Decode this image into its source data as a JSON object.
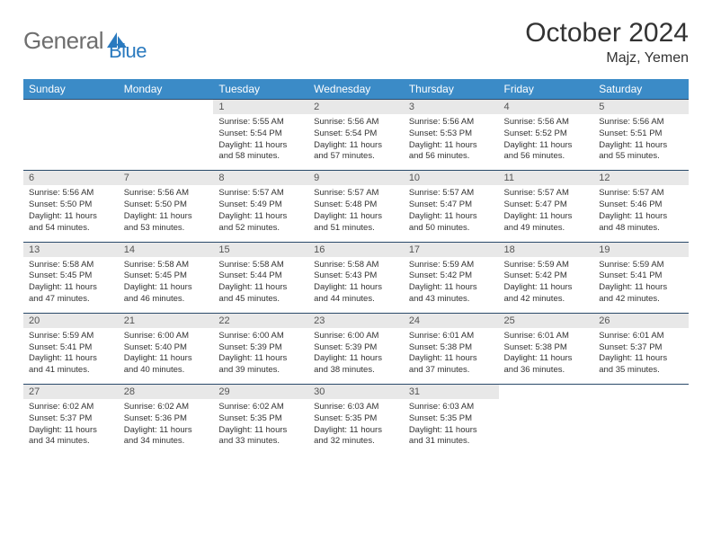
{
  "logo": {
    "text1": "General",
    "text2": "Blue",
    "icon_color": "#2a7abf"
  },
  "title": "October 2024",
  "subtitle": "Majz, Yemen",
  "header_bg": "#3b8bc7",
  "header_fg": "#ffffff",
  "daynum_bg": "#e8e8e8",
  "border_color": "#2a4a6a",
  "weekdays": [
    "Sunday",
    "Monday",
    "Tuesday",
    "Wednesday",
    "Thursday",
    "Friday",
    "Saturday"
  ],
  "weeks": [
    [
      {
        "day": "",
        "lines": []
      },
      {
        "day": "",
        "lines": []
      },
      {
        "day": "1",
        "lines": [
          "Sunrise: 5:55 AM",
          "Sunset: 5:54 PM",
          "Daylight: 11 hours",
          "and 58 minutes."
        ]
      },
      {
        "day": "2",
        "lines": [
          "Sunrise: 5:56 AM",
          "Sunset: 5:54 PM",
          "Daylight: 11 hours",
          "and 57 minutes."
        ]
      },
      {
        "day": "3",
        "lines": [
          "Sunrise: 5:56 AM",
          "Sunset: 5:53 PM",
          "Daylight: 11 hours",
          "and 56 minutes."
        ]
      },
      {
        "day": "4",
        "lines": [
          "Sunrise: 5:56 AM",
          "Sunset: 5:52 PM",
          "Daylight: 11 hours",
          "and 56 minutes."
        ]
      },
      {
        "day": "5",
        "lines": [
          "Sunrise: 5:56 AM",
          "Sunset: 5:51 PM",
          "Daylight: 11 hours",
          "and 55 minutes."
        ]
      }
    ],
    [
      {
        "day": "6",
        "lines": [
          "Sunrise: 5:56 AM",
          "Sunset: 5:50 PM",
          "Daylight: 11 hours",
          "and 54 minutes."
        ]
      },
      {
        "day": "7",
        "lines": [
          "Sunrise: 5:56 AM",
          "Sunset: 5:50 PM",
          "Daylight: 11 hours",
          "and 53 minutes."
        ]
      },
      {
        "day": "8",
        "lines": [
          "Sunrise: 5:57 AM",
          "Sunset: 5:49 PM",
          "Daylight: 11 hours",
          "and 52 minutes."
        ]
      },
      {
        "day": "9",
        "lines": [
          "Sunrise: 5:57 AM",
          "Sunset: 5:48 PM",
          "Daylight: 11 hours",
          "and 51 minutes."
        ]
      },
      {
        "day": "10",
        "lines": [
          "Sunrise: 5:57 AM",
          "Sunset: 5:47 PM",
          "Daylight: 11 hours",
          "and 50 minutes."
        ]
      },
      {
        "day": "11",
        "lines": [
          "Sunrise: 5:57 AM",
          "Sunset: 5:47 PM",
          "Daylight: 11 hours",
          "and 49 minutes."
        ]
      },
      {
        "day": "12",
        "lines": [
          "Sunrise: 5:57 AM",
          "Sunset: 5:46 PM",
          "Daylight: 11 hours",
          "and 48 minutes."
        ]
      }
    ],
    [
      {
        "day": "13",
        "lines": [
          "Sunrise: 5:58 AM",
          "Sunset: 5:45 PM",
          "Daylight: 11 hours",
          "and 47 minutes."
        ]
      },
      {
        "day": "14",
        "lines": [
          "Sunrise: 5:58 AM",
          "Sunset: 5:45 PM",
          "Daylight: 11 hours",
          "and 46 minutes."
        ]
      },
      {
        "day": "15",
        "lines": [
          "Sunrise: 5:58 AM",
          "Sunset: 5:44 PM",
          "Daylight: 11 hours",
          "and 45 minutes."
        ]
      },
      {
        "day": "16",
        "lines": [
          "Sunrise: 5:58 AM",
          "Sunset: 5:43 PM",
          "Daylight: 11 hours",
          "and 44 minutes."
        ]
      },
      {
        "day": "17",
        "lines": [
          "Sunrise: 5:59 AM",
          "Sunset: 5:42 PM",
          "Daylight: 11 hours",
          "and 43 minutes."
        ]
      },
      {
        "day": "18",
        "lines": [
          "Sunrise: 5:59 AM",
          "Sunset: 5:42 PM",
          "Daylight: 11 hours",
          "and 42 minutes."
        ]
      },
      {
        "day": "19",
        "lines": [
          "Sunrise: 5:59 AM",
          "Sunset: 5:41 PM",
          "Daylight: 11 hours",
          "and 42 minutes."
        ]
      }
    ],
    [
      {
        "day": "20",
        "lines": [
          "Sunrise: 5:59 AM",
          "Sunset: 5:41 PM",
          "Daylight: 11 hours",
          "and 41 minutes."
        ]
      },
      {
        "day": "21",
        "lines": [
          "Sunrise: 6:00 AM",
          "Sunset: 5:40 PM",
          "Daylight: 11 hours",
          "and 40 minutes."
        ]
      },
      {
        "day": "22",
        "lines": [
          "Sunrise: 6:00 AM",
          "Sunset: 5:39 PM",
          "Daylight: 11 hours",
          "and 39 minutes."
        ]
      },
      {
        "day": "23",
        "lines": [
          "Sunrise: 6:00 AM",
          "Sunset: 5:39 PM",
          "Daylight: 11 hours",
          "and 38 minutes."
        ]
      },
      {
        "day": "24",
        "lines": [
          "Sunrise: 6:01 AM",
          "Sunset: 5:38 PM",
          "Daylight: 11 hours",
          "and 37 minutes."
        ]
      },
      {
        "day": "25",
        "lines": [
          "Sunrise: 6:01 AM",
          "Sunset: 5:38 PM",
          "Daylight: 11 hours",
          "and 36 minutes."
        ]
      },
      {
        "day": "26",
        "lines": [
          "Sunrise: 6:01 AM",
          "Sunset: 5:37 PM",
          "Daylight: 11 hours",
          "and 35 minutes."
        ]
      }
    ],
    [
      {
        "day": "27",
        "lines": [
          "Sunrise: 6:02 AM",
          "Sunset: 5:37 PM",
          "Daylight: 11 hours",
          "and 34 minutes."
        ]
      },
      {
        "day": "28",
        "lines": [
          "Sunrise: 6:02 AM",
          "Sunset: 5:36 PM",
          "Daylight: 11 hours",
          "and 34 minutes."
        ]
      },
      {
        "day": "29",
        "lines": [
          "Sunrise: 6:02 AM",
          "Sunset: 5:35 PM",
          "Daylight: 11 hours",
          "and 33 minutes."
        ]
      },
      {
        "day": "30",
        "lines": [
          "Sunrise: 6:03 AM",
          "Sunset: 5:35 PM",
          "Daylight: 11 hours",
          "and 32 minutes."
        ]
      },
      {
        "day": "31",
        "lines": [
          "Sunrise: 6:03 AM",
          "Sunset: 5:35 PM",
          "Daylight: 11 hours",
          "and 31 minutes."
        ]
      },
      {
        "day": "",
        "lines": []
      },
      {
        "day": "",
        "lines": []
      }
    ]
  ]
}
